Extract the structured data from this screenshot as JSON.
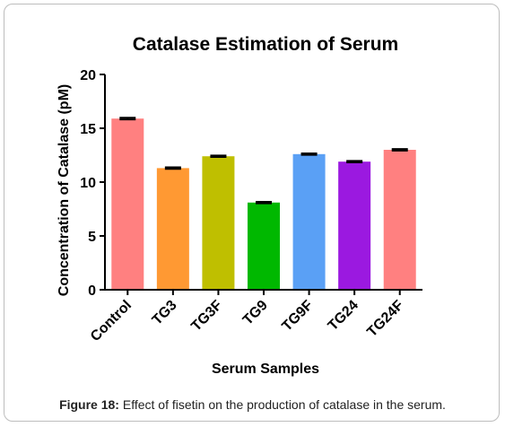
{
  "caption": {
    "label": "Figure 18:",
    "text": " Effect of fisetin on the production of catalase in the serum."
  },
  "chart_data": {
    "type": "bar",
    "title": "Catalase Estimation of Serum",
    "xlabel": "Serum Samples",
    "ylabel": "Concentration of Catalase (pM)",
    "ylim": [
      0,
      20
    ],
    "yticks": [
      "0",
      "5",
      "10",
      "15",
      "20"
    ],
    "categories": [
      "Control",
      "TG3",
      "TG3F",
      "TG9",
      "TG9F",
      "TG24",
      "TG24F"
    ],
    "values": [
      15.9,
      11.3,
      12.4,
      8.1,
      12.6,
      11.9,
      13.0
    ],
    "errors": [
      0.08,
      0.07,
      0.07,
      0.07,
      0.07,
      0.07,
      0.07
    ],
    "colors": [
      "#ff8080",
      "#ff9933",
      "#bfbf00",
      "#00b800",
      "#5aa0f5",
      "#9b19e0",
      "#ff8080"
    ],
    "grid": false,
    "legend": "none"
  }
}
